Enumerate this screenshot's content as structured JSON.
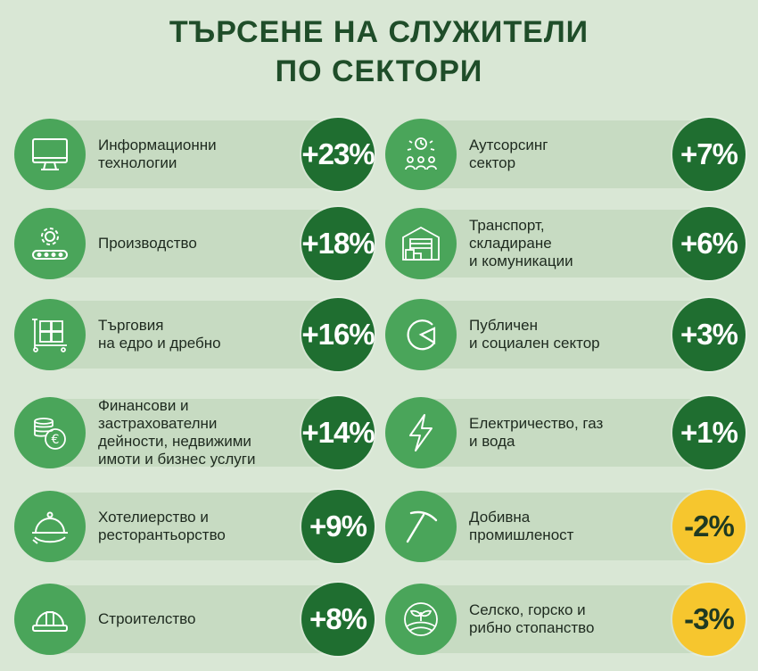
{
  "title": {
    "line1": "ТЪРСЕНЕ НА СЛУЖИТЕЛИ",
    "line2": "ПО СЕКТОРИ"
  },
  "colors": {
    "positive": "#1f6e30",
    "negative": "#f6c62e",
    "icon_bg": "#4aa55a",
    "bar_bg": "#c7dbc2"
  },
  "sectors": [
    {
      "label": "Информационни\nтехнологии",
      "value": "+23%",
      "icon": "monitor-icon",
      "negative": false
    },
    {
      "label": "Аутсорсинг\nсектор",
      "value": "+7%",
      "icon": "team-icon",
      "negative": false
    },
    {
      "label": "Производство",
      "value": "+18%",
      "icon": "conveyor-gear-icon",
      "negative": false
    },
    {
      "label": "Транспорт,\nскладиране\nи комуникации",
      "value": "+6%",
      "icon": "warehouse-icon",
      "negative": false
    },
    {
      "label": "Търговия\nна едро и дребно",
      "value": "+16%",
      "icon": "pallet-jack-icon",
      "negative": false
    },
    {
      "label": "Публичен\nи социален сектор",
      "value": "+3%",
      "icon": "public-sector-icon",
      "negative": false
    },
    {
      "label": "Финансови и\nзастрахователни\nдейности, недвижими\nимоти и бизнес услуги",
      "value": "+14%",
      "icon": "euro-coins-icon",
      "negative": false
    },
    {
      "label": "Електричество, газ\nи вода",
      "value": "+1%",
      "icon": "lightning-icon",
      "negative": false
    },
    {
      "label": "Хотелиерство и\nресторантьорство",
      "value": "+9%",
      "icon": "cloche-icon",
      "negative": false
    },
    {
      "label": "Добивна\nпромишленост",
      "value": "-2%",
      "icon": "pickaxe-icon",
      "negative": true
    },
    {
      "label": "Строителство",
      "value": "+8%",
      "icon": "hard-hat-icon",
      "negative": false
    },
    {
      "label": "Селско, горско и\nрибно стопанство",
      "value": "-3%",
      "icon": "agriculture-icon",
      "negative": true
    }
  ]
}
